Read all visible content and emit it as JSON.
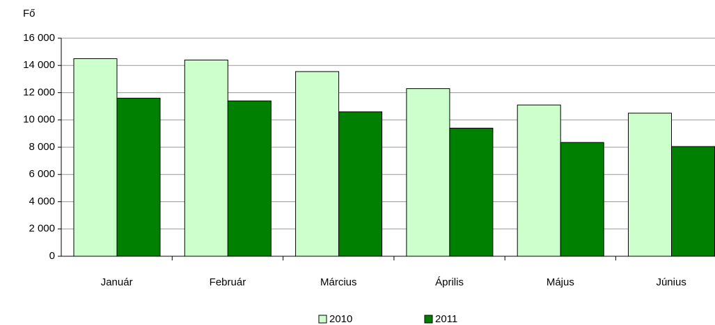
{
  "chart_data": {
    "type": "bar",
    "y_label": "Fő",
    "categories": [
      "Január",
      "Február",
      "Március",
      "Április",
      "Május",
      "Június"
    ],
    "series": [
      {
        "name": "2010",
        "color": "#ccffcc",
        "values": [
          14500,
          14400,
          13550,
          12300,
          11100,
          10500
        ]
      },
      {
        "name": "2011",
        "color": "#008000",
        "values": [
          11600,
          11400,
          10600,
          9400,
          8350,
          8050
        ]
      }
    ],
    "ylim": [
      0,
      16000
    ],
    "yticks": [
      0,
      {
        "value": 2000,
        "label": "2 000"
      },
      {
        "value": 4000,
        "label": "4 000"
      },
      {
        "value": 6000,
        "label": "6 000"
      },
      {
        "value": 8000,
        "label": "8 000"
      },
      {
        "value": 10000,
        "label": "10 000"
      },
      {
        "value": 12000,
        "label": "12 000"
      },
      {
        "value": 14000,
        "label": "14 000"
      },
      {
        "value": 16000,
        "label": "16 000"
      }
    ],
    "grid": true,
    "legend": "bottom"
  }
}
